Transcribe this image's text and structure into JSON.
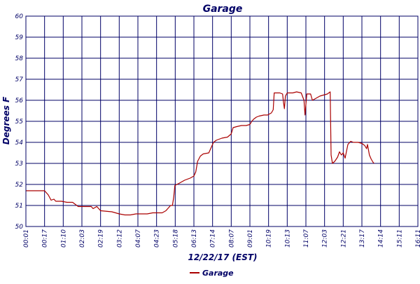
{
  "chart_data": {
    "type": "line",
    "title": "Garage",
    "xlabel": "12/22/17 (EST)",
    "ylabel": "Degrees F",
    "ylim": [
      50,
      60
    ],
    "yticks": [
      "50",
      "51",
      "52",
      "53",
      "54",
      "55",
      "56",
      "57",
      "58",
      "59",
      "60"
    ],
    "xticks": [
      "00:01",
      "00:17",
      "01:10",
      "02:03",
      "02:19",
      "03:12",
      "04:07",
      "04:23",
      "05:18",
      "06:13",
      "07:14",
      "08:07",
      "09:01",
      "10:19",
      "10:13",
      "11:07",
      "12:03",
      "12:21",
      "13:17",
      "14:14",
      "15:11",
      "16:11"
    ],
    "grid": true,
    "legend_position": "bottom",
    "colors": {
      "series": "#aa0000",
      "grid": "#000066",
      "text": "#000066"
    },
    "series": [
      {
        "name": "Garage",
        "points": [
          [
            0,
            51.7
          ],
          [
            1.0,
            51.7
          ],
          [
            1.05,
            51.65
          ],
          [
            1.2,
            51.5
          ],
          [
            1.35,
            51.25
          ],
          [
            1.5,
            51.3
          ],
          [
            1.6,
            51.2
          ],
          [
            1.9,
            51.2
          ],
          [
            2.2,
            51.15
          ],
          [
            2.5,
            51.15
          ],
          [
            2.65,
            51.05
          ],
          [
            2.8,
            50.95
          ],
          [
            3.2,
            50.95
          ],
          [
            3.5,
            50.95
          ],
          [
            3.6,
            50.85
          ],
          [
            3.8,
            50.95
          ],
          [
            4.0,
            50.75
          ],
          [
            4.6,
            50.7
          ],
          [
            4.8,
            50.65
          ],
          [
            5.0,
            50.6
          ],
          [
            5.3,
            50.55
          ],
          [
            5.6,
            50.55
          ],
          [
            5.9,
            50.6
          ],
          [
            6.2,
            50.6
          ],
          [
            6.5,
            50.6
          ],
          [
            6.8,
            50.65
          ],
          [
            7.3,
            50.65
          ],
          [
            7.5,
            50.75
          ],
          [
            7.65,
            50.9
          ],
          [
            7.75,
            51.0
          ],
          [
            7.85,
            51.0
          ],
          [
            7.92,
            51.4
          ],
          [
            7.98,
            51.95
          ],
          [
            8.2,
            52.05
          ],
          [
            8.5,
            52.2
          ],
          [
            8.8,
            52.3
          ],
          [
            9.0,
            52.4
          ],
          [
            9.1,
            52.6
          ],
          [
            9.2,
            53.1
          ],
          [
            9.35,
            53.35
          ],
          [
            9.5,
            53.45
          ],
          [
            9.8,
            53.5
          ],
          [
            9.95,
            53.8
          ],
          [
            10.05,
            54.0
          ],
          [
            10.2,
            54.1
          ],
          [
            10.5,
            54.2
          ],
          [
            10.8,
            54.25
          ],
          [
            11.0,
            54.4
          ],
          [
            11.1,
            54.7
          ],
          [
            11.3,
            54.75
          ],
          [
            11.55,
            54.8
          ],
          [
            11.8,
            54.8
          ],
          [
            12.0,
            54.85
          ],
          [
            12.1,
            55.0
          ],
          [
            12.2,
            55.1
          ],
          [
            12.35,
            55.2
          ],
          [
            12.5,
            55.25
          ],
          [
            12.75,
            55.3
          ],
          [
            12.95,
            55.3
          ],
          [
            13.05,
            55.35
          ],
          [
            13.15,
            55.4
          ],
          [
            13.25,
            55.55
          ],
          [
            13.3,
            56.35
          ],
          [
            13.6,
            56.35
          ],
          [
            13.75,
            56.3
          ],
          [
            13.8,
            55.9
          ],
          [
            13.85,
            55.6
          ],
          [
            13.9,
            56.2
          ],
          [
            14.0,
            56.35
          ],
          [
            14.3,
            56.35
          ],
          [
            14.5,
            56.4
          ],
          [
            14.75,
            56.35
          ],
          [
            14.9,
            56.0
          ],
          [
            14.95,
            55.3
          ],
          [
            15.05,
            56.3
          ],
          [
            15.25,
            56.3
          ],
          [
            15.35,
            56.0
          ],
          [
            15.55,
            56.1
          ],
          [
            15.75,
            56.2
          ],
          [
            15.95,
            56.25
          ],
          [
            16.15,
            56.3
          ],
          [
            16.3,
            56.4
          ],
          [
            16.35,
            53.4
          ],
          [
            16.42,
            53.0
          ],
          [
            16.55,
            53.1
          ],
          [
            16.7,
            53.3
          ],
          [
            16.8,
            53.55
          ],
          [
            16.9,
            53.4
          ],
          [
            17.0,
            53.5
          ],
          [
            17.1,
            53.25
          ],
          [
            17.25,
            53.9
          ],
          [
            17.4,
            54.05
          ],
          [
            17.55,
            54.0
          ],
          [
            17.8,
            54.0
          ],
          [
            18.0,
            53.95
          ],
          [
            18.15,
            53.85
          ],
          [
            18.25,
            53.7
          ],
          [
            18.3,
            53.9
          ],
          [
            18.4,
            53.4
          ],
          [
            18.5,
            53.2
          ],
          [
            18.6,
            53.05
          ],
          [
            18.65,
            53.0
          ]
        ]
      }
    ]
  }
}
